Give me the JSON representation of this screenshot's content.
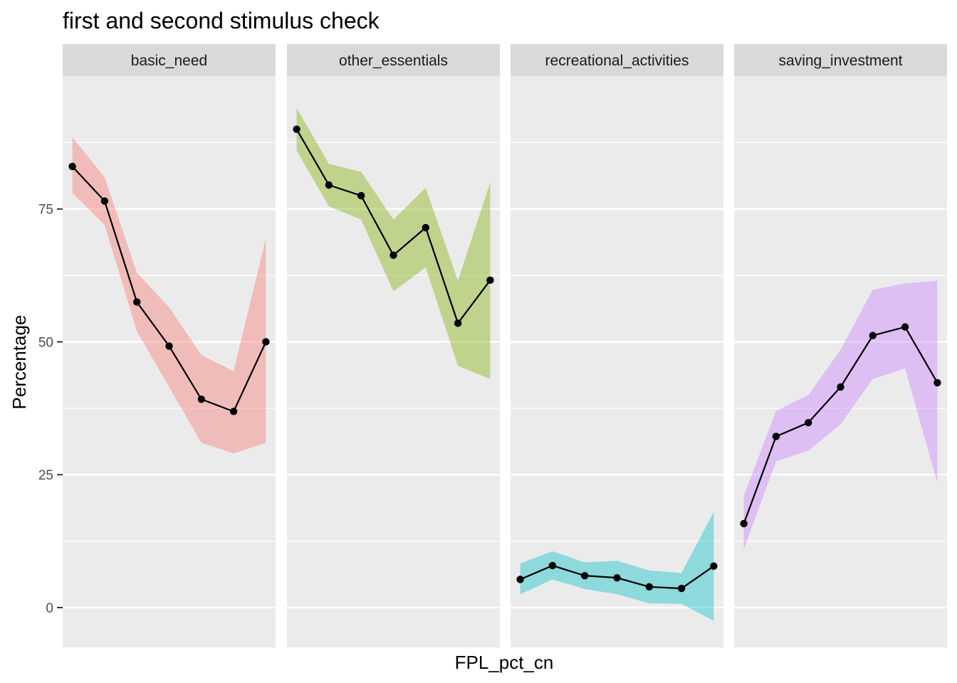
{
  "chart_data": {
    "type": "line",
    "title": "first and second stimulus check",
    "xlabel": "FPL_pct_cn",
    "ylabel": "Percentage",
    "ylim": [
      -7.5,
      100
    ],
    "yticks": [
      0,
      25,
      50,
      75
    ],
    "xlim": [
      0.7,
      7.3
    ],
    "grid": true,
    "legend": "none",
    "panels": [
      {
        "name": "basic_need",
        "fill": "#f8766d",
        "x": [
          1,
          2,
          3,
          4,
          5,
          6,
          7
        ],
        "values": [
          83.0,
          76.5,
          57.5,
          49.2,
          39.2,
          36.9,
          50.0
        ],
        "lower": [
          78.0,
          72.0,
          52.0,
          41.5,
          31.0,
          29.0,
          31.0
        ],
        "upper": [
          88.5,
          81.0,
          63.0,
          56.5,
          47.5,
          44.5,
          69.5
        ]
      },
      {
        "name": "other_essentials",
        "fill": "#7cae00",
        "x": [
          1,
          2,
          3,
          4,
          5,
          6,
          7
        ],
        "values": [
          90.0,
          79.5,
          77.5,
          66.3,
          71.5,
          53.5,
          61.6
        ],
        "lower": [
          86.0,
          75.5,
          73.0,
          59.5,
          64.0,
          45.5,
          43.0
        ],
        "upper": [
          94.0,
          83.5,
          82.0,
          73.0,
          79.0,
          61.5,
          80.0
        ]
      },
      {
        "name": "recreational_activities",
        "fill": "#00bfc4",
        "x": [
          1,
          2,
          3,
          4,
          5,
          6,
          7
        ],
        "values": [
          5.3,
          7.9,
          6.0,
          5.6,
          3.9,
          3.6,
          7.8
        ],
        "lower": [
          2.5,
          5.3,
          3.5,
          2.5,
          0.8,
          0.7,
          -2.5
        ],
        "upper": [
          8.3,
          10.6,
          8.5,
          8.8,
          7.0,
          6.5,
          18.0
        ]
      },
      {
        "name": "saving_investment",
        "fill": "#c77cff",
        "x": [
          1,
          2,
          3,
          4,
          5,
          6,
          7
        ],
        "values": [
          15.8,
          32.2,
          34.8,
          41.5,
          51.2,
          52.8,
          42.3
        ],
        "lower": [
          11.0,
          27.5,
          29.5,
          34.5,
          43.0,
          45.0,
          23.5
        ],
        "upper": [
          21.0,
          37.0,
          40.0,
          48.5,
          59.8,
          61.0,
          61.5
        ]
      }
    ]
  }
}
